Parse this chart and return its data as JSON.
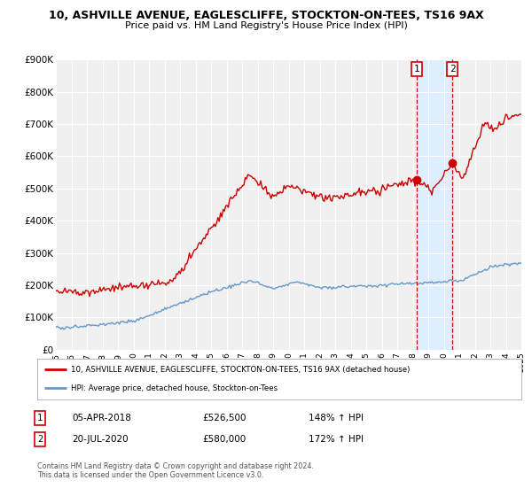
{
  "title": "10, ASHVILLE AVENUE, EAGLESCLIFFE, STOCKTON-ON-TEES, TS16 9AX",
  "subtitle": "Price paid vs. HM Land Registry's House Price Index (HPI)",
  "ylim": [
    0,
    900000
  ],
  "xlim_start": 1995,
  "xlim_end": 2025,
  "yticks": [
    0,
    100000,
    200000,
    300000,
    400000,
    500000,
    600000,
    700000,
    800000,
    900000
  ],
  "ytick_labels": [
    "£0",
    "£100K",
    "£200K",
    "£300K",
    "£400K",
    "£500K",
    "£600K",
    "£700K",
    "£800K",
    "£900K"
  ],
  "xticks": [
    1995,
    1996,
    1997,
    1998,
    1999,
    2000,
    2001,
    2002,
    2003,
    2004,
    2005,
    2006,
    2007,
    2008,
    2009,
    2010,
    2011,
    2012,
    2013,
    2014,
    2015,
    2016,
    2017,
    2018,
    2019,
    2020,
    2021,
    2022,
    2023,
    2024,
    2025
  ],
  "red_line_color": "#cc0000",
  "blue_line_color": "#6699cc",
  "background_color": "#ffffff",
  "plot_bg_color": "#f0f0f0",
  "grid_color": "#ffffff",
  "shade_color": "#ddeeff",
  "point1_x": 2018.27,
  "point1_y": 526500,
  "point2_x": 2020.55,
  "point2_y": 580000,
  "vline1_x": 2018.27,
  "vline2_x": 2020.55,
  "legend_line1": "10, ASHVILLE AVENUE, EAGLESCLIFFE, STOCKTON-ON-TEES, TS16 9AX (detached house)",
  "legend_line2": "HPI: Average price, detached house, Stockton-on-Tees",
  "table_row1": [
    "1",
    "05-APR-2018",
    "£526,500",
    "148% ↑ HPI"
  ],
  "table_row2": [
    "2",
    "20-JUL-2020",
    "£580,000",
    "172% ↑ HPI"
  ],
  "footnote1": "Contains HM Land Registry data © Crown copyright and database right 2024.",
  "footnote2": "This data is licensed under the Open Government Licence v3.0."
}
